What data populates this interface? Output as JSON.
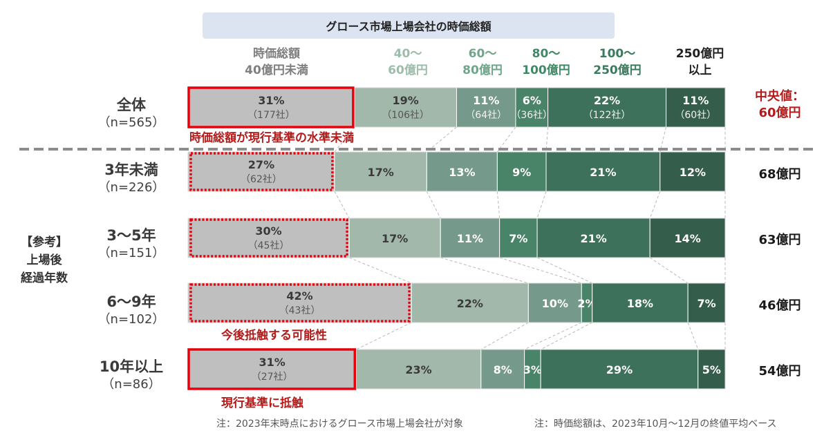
{
  "title": "グロース市場上場会社の時価総額",
  "bins": [
    {
      "line1": "時価総額",
      "line2": "40億円未満",
      "color": "#7f7f7f"
    },
    {
      "line1": "40～",
      "line2": "60億円",
      "color": "#9cbdaa"
    },
    {
      "line1": "60～",
      "line2": "80億円",
      "color": "#6fa58a"
    },
    {
      "line1": "80～",
      "line2": "100億円",
      "color": "#3f8a66"
    },
    {
      "line1": "100～",
      "line2": "250億円",
      "color": "#3a7b5e"
    },
    {
      "line1": "250億円",
      "line2": "以上",
      "color": "#1f1f1f"
    }
  ],
  "reference_label": {
    "l1": "【参考】",
    "l2": "上場後",
    "l3": "経過年数"
  },
  "median_header": {
    "l1": "中央値：",
    "l2": "60億円"
  },
  "annotations": {
    "a1": "時価総額が現行基準の水準未満",
    "a2": "今後抵触する可能性",
    "a3": "現行基準に抵触"
  },
  "footnotes": {
    "left": "注：2023年末時点におけるグロース市場上場会社が対象",
    "right": "注：時価総額は、2023年10月～12月の終値平均ベース"
  },
  "colors": {
    "seg1": "#bfbfbf",
    "seg2": "#a2b8aa",
    "seg3": "#75998a",
    "seg4": "#4a8468",
    "seg5": "#3e715b",
    "seg6": "#345e4b",
    "highlight": "#e8000b",
    "median_header": "#b31b1b"
  },
  "chart_data": {
    "type": "bar",
    "orientation": "horizontal",
    "stacked": "100%",
    "categories": [
      "全体",
      "3年未満",
      "3～5年",
      "6～9年",
      "10年以上"
    ],
    "n_labels": [
      "（n=565）",
      "（n=226）",
      "（n=151）",
      "（n=102）",
      "（n=86）"
    ],
    "series": [
      {
        "name": "時価総額40億円未満",
        "values": [
          31,
          27,
          30,
          42,
          31
        ],
        "labels": [
          "31%",
          "27%",
          "30%",
          "42%",
          "31%"
        ],
        "counts": [
          "（177社）",
          "（62社）",
          "（45社）",
          "（43社）",
          "（27社）"
        ]
      },
      {
        "name": "40～60億円",
        "values": [
          19,
          17,
          17,
          22,
          23
        ],
        "labels": [
          "19%",
          "17%",
          "17%",
          "22%",
          "23%"
        ],
        "counts": [
          "（106社）",
          "",
          "",
          "",
          ""
        ]
      },
      {
        "name": "60～80億円",
        "values": [
          11,
          13,
          11,
          10,
          8
        ],
        "labels": [
          "11%",
          "13%",
          "11%",
          "10%",
          "8%"
        ],
        "counts": [
          "（64社）",
          "",
          "",
          "",
          ""
        ]
      },
      {
        "name": "80～100億円",
        "values": [
          6,
          9,
          7,
          2,
          3
        ],
        "labels": [
          "6%",
          "9%",
          "7%",
          "2%",
          "3%"
        ],
        "counts": [
          "（36社）",
          "",
          "",
          "",
          ""
        ]
      },
      {
        "name": "100～250億円",
        "values": [
          22,
          21,
          21,
          18,
          29
        ],
        "labels": [
          "22%",
          "21%",
          "21%",
          "18%",
          "29%"
        ],
        "counts": [
          "（122社）",
          "",
          "",
          "",
          ""
        ]
      },
      {
        "name": "250億円以上",
        "values": [
          11,
          12,
          14,
          7,
          5
        ],
        "labels": [
          "11%",
          "12%",
          "14%",
          "7%",
          "5%"
        ],
        "counts": [
          "（60社）",
          "",
          "",
          "",
          ""
        ]
      }
    ],
    "medians": [
      "",
      "68億円",
      "63億円",
      "46億円",
      "54億円"
    ],
    "first_segment_highlight": [
      "solid",
      "dotted",
      "dotted",
      "dotted",
      "solid"
    ]
  }
}
